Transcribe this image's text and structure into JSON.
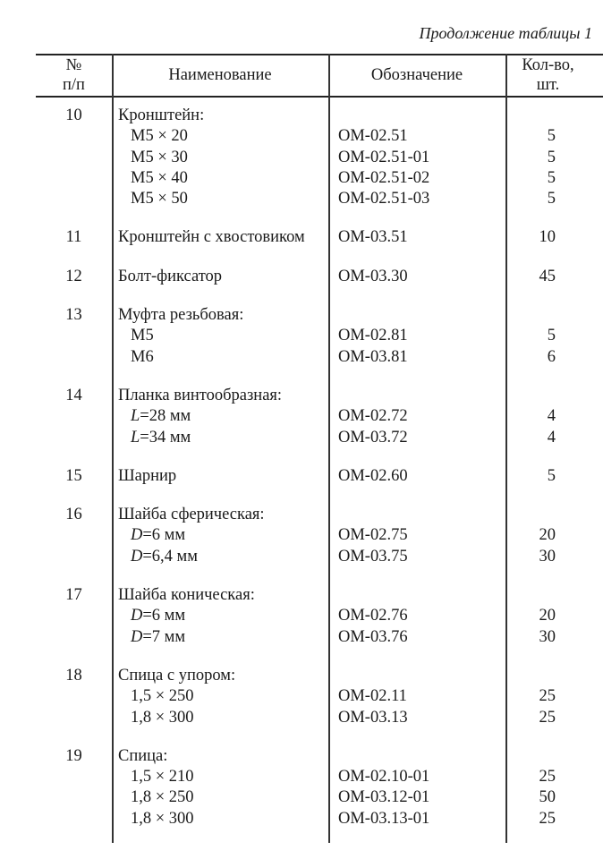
{
  "caption": "Продолжение таблицы 1",
  "headers": {
    "no_line1": "№",
    "no_line2": "п/п",
    "name": "Наименование",
    "designation": "Обозначение",
    "qty_line1": "Кол-во,",
    "qty_line2": "шт."
  },
  "rows": [
    {
      "no": "10",
      "name": "Кронштейн:",
      "items": [
        {
          "label": "M5 × 20",
          "designation": "ОМ-02.51",
          "qty": "5"
        },
        {
          "label": "M5 × 30",
          "designation": "ОМ-02.51-01",
          "qty": "5"
        },
        {
          "label": "M5 × 40",
          "designation": "ОМ-02.51-02",
          "qty": "5"
        },
        {
          "label": "M5 × 50",
          "designation": "ОМ-02.51-03",
          "qty": "5"
        }
      ]
    },
    {
      "no": "11",
      "name": "Кронштейн с хвостовиком",
      "designation": "ОМ-03.51",
      "qty": "10"
    },
    {
      "no": "12",
      "name": "Болт-фиксатор",
      "designation": "ОМ-03.30",
      "qty": "45"
    },
    {
      "no": "13",
      "name": "Муфта резьбовая:",
      "items": [
        {
          "label": "M5",
          "designation": "ОМ-02.81",
          "qty": "5"
        },
        {
          "label": "M6",
          "designation": "ОМ-03.81",
          "qty": "6"
        }
      ]
    },
    {
      "no": "14",
      "name": "Планка винтообразная:",
      "items": [
        {
          "label": "L=28 мм",
          "designation": "ОМ-02.72",
          "qty": "4"
        },
        {
          "label": "L=34 мм",
          "designation": "ОМ-03.72",
          "qty": "4"
        }
      ]
    },
    {
      "no": "15",
      "name": "Шарнир",
      "designation": "ОМ-02.60",
      "qty": "5"
    },
    {
      "no": "16",
      "name": "Шайба сферическая:",
      "items": [
        {
          "label": "D=6 мм",
          "designation": "ОМ-02.75",
          "qty": "20"
        },
        {
          "label": "D=6,4 мм",
          "designation": "ОМ-03.75",
          "qty": "30"
        }
      ]
    },
    {
      "no": "17",
      "name": "Шайба коническая:",
      "items": [
        {
          "label": "D=6 мм",
          "designation": "ОМ-02.76",
          "qty": "20"
        },
        {
          "label": "D=7 мм",
          "designation": "ОМ-03.76",
          "qty": "30"
        }
      ]
    },
    {
      "no": "18",
      "name": "Спица с упором:",
      "items": [
        {
          "label": "1,5 × 250",
          "designation": "ОМ-02.11",
          "qty": "25"
        },
        {
          "label": "1,8 × 300",
          "designation": "ОМ-03.13",
          "qty": "25"
        }
      ]
    },
    {
      "no": "19",
      "name": "Спица:",
      "items": [
        {
          "label": "1,5 × 210",
          "designation": "ОМ-02.10-01",
          "qty": "25"
        },
        {
          "label": "1,8 × 250",
          "designation": "ОМ-03.12-01",
          "qty": "50"
        },
        {
          "label": "1,8 × 300",
          "designation": "ОМ-03.13-01",
          "qty": "25"
        }
      ]
    }
  ]
}
